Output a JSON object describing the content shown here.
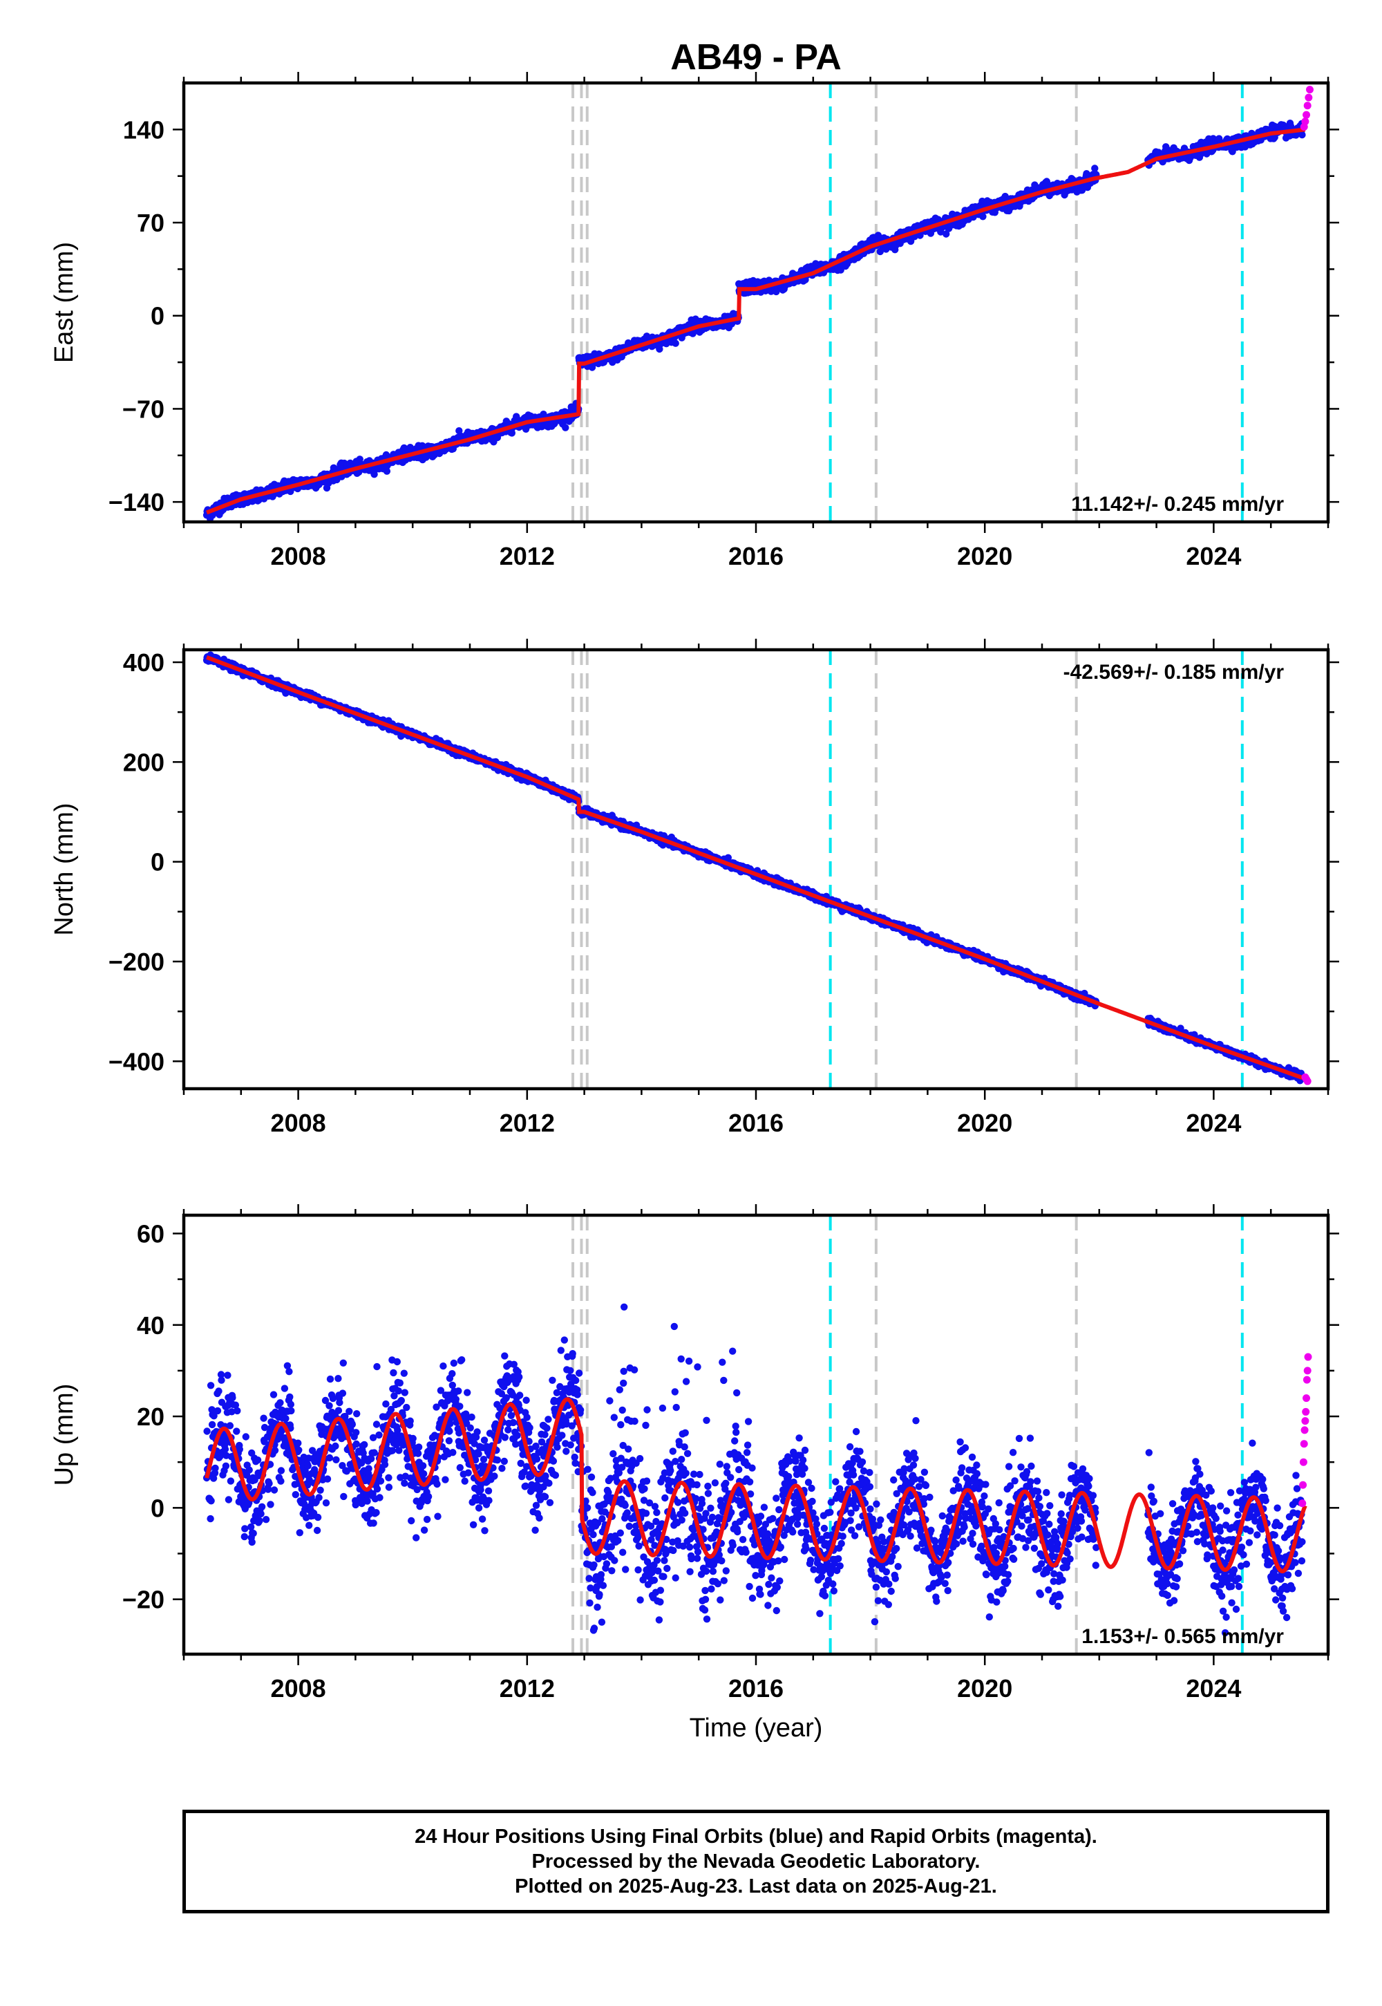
{
  "title": "AB49 - PA",
  "colors": {
    "final_orbits": "#1010ee",
    "rapid_orbits": "#ee00ee",
    "model": "#ee1010",
    "equipment_change": "#c8c8c8",
    "earthquake": "#00e6f0"
  },
  "x_axis": {
    "label": "Time (year)",
    "range": [
      2006.0,
      2026.0
    ],
    "ticks": [
      2008,
      2012,
      2016,
      2020,
      2024
    ],
    "tick_labels": [
      "2008",
      "2012",
      "2016",
      "2020",
      "2024"
    ],
    "minor_step": 1
  },
  "event_lines": {
    "gray": [
      2012.8,
      2012.95,
      2013.05,
      2018.1,
      2021.6
    ],
    "cyan": [
      2017.3,
      2024.5
    ]
  },
  "chart_data": [
    {
      "type": "scatter",
      "name": "east",
      "ylabel": "East (mm)",
      "ylim": [
        -155,
        175
      ],
      "yticks": [
        -140,
        -70,
        0,
        70,
        140
      ],
      "ytick_labels": [
        "−140",
        "−70",
        "0",
        "70",
        "140"
      ],
      "rate_label": "11.142+/- 0.245 mm/yr",
      "rate_position": "bottom-right",
      "x": [
        2006.4,
        2007.0,
        2008.0,
        2009.0,
        2010.0,
        2011.0,
        2012.0,
        2012.9,
        2013.0,
        2014.0,
        2015.0,
        2015.7,
        2016.0,
        2017.0,
        2018.0,
        2019.0,
        2020.0,
        2021.0,
        2021.9,
        2022.5,
        2023.0,
        2024.0,
        2025.0,
        2025.6
      ],
      "y": [
        -148,
        -138,
        -127,
        -115,
        -104,
        -93,
        -80,
        -74,
        -36,
        -22,
        -8,
        -2,
        20,
        32,
        52,
        66,
        80,
        93,
        103,
        108,
        118,
        127,
        137,
        140
      ],
      "rapid_x": [
        2025.58,
        2025.6,
        2025.62,
        2025.64,
        2025.66,
        2025.68
      ],
      "rapid_y": [
        142,
        146,
        151,
        158,
        164,
        170
      ]
    },
    {
      "type": "scatter",
      "name": "north",
      "ylabel": "North (mm)",
      "ylim": [
        -455,
        425
      ],
      "yticks": [
        -400,
        -200,
        0,
        200,
        400
      ],
      "ytick_labels": [
        "−400",
        "−200",
        "0",
        "200",
        "400"
      ],
      "rate_label": "-42.569+/- 0.185 mm/yr",
      "rate_position": "top-right",
      "x": [
        2006.4,
        2008.0,
        2010.0,
        2012.0,
        2012.9,
        2013.0,
        2014.0,
        2016.0,
        2018.0,
        2020.0,
        2022.0,
        2024.0,
        2025.6
      ],
      "y": [
        410,
        340,
        255,
        170,
        125,
        100,
        60,
        -25,
        -110,
        -195,
        -285,
        -370,
        -435
      ],
      "rapid_x": [
        2025.6,
        2025.62,
        2025.64
      ],
      "rapid_y": [
        -432,
        -436,
        -440
      ]
    },
    {
      "type": "scatter",
      "name": "up",
      "ylabel": "Up (mm)",
      "ylim": [
        -32,
        64
      ],
      "yticks": [
        -20,
        0,
        20,
        40,
        60
      ],
      "ytick_labels": [
        "−20",
        "0",
        "20",
        "40",
        "60"
      ],
      "rate_label": "1.153+/- 0.565 mm/yr",
      "rate_position": "bottom-right",
      "model": {
        "amplitude_before_2013": 8,
        "amplitude_after_2013": 8,
        "segments": [
          {
            "from": 2006.4,
            "to": 2012.95,
            "offset_start": 9,
            "offset_end": 16
          },
          {
            "from": 2013.05,
            "to": 2025.6,
            "offset_start": -2,
            "offset_end": -6
          }
        ],
        "phase_peak": 0.7
      },
      "rapid_x": [
        2025.55,
        2025.56,
        2025.57,
        2025.58,
        2025.59,
        2025.6,
        2025.61,
        2025.62,
        2025.63,
        2025.64,
        2025.65
      ],
      "rapid_y": [
        1,
        5,
        10,
        14,
        17,
        19,
        21,
        24,
        28,
        30,
        33
      ]
    }
  ],
  "footer": {
    "line1": "24 Hour Positions Using Final Orbits (blue) and Rapid Orbits (magenta).",
    "line2": "Processed by the Nevada Geodetic Laboratory.",
    "line3": "Plotted on 2025-Aug-23. Last data on 2025-Aug-21."
  }
}
